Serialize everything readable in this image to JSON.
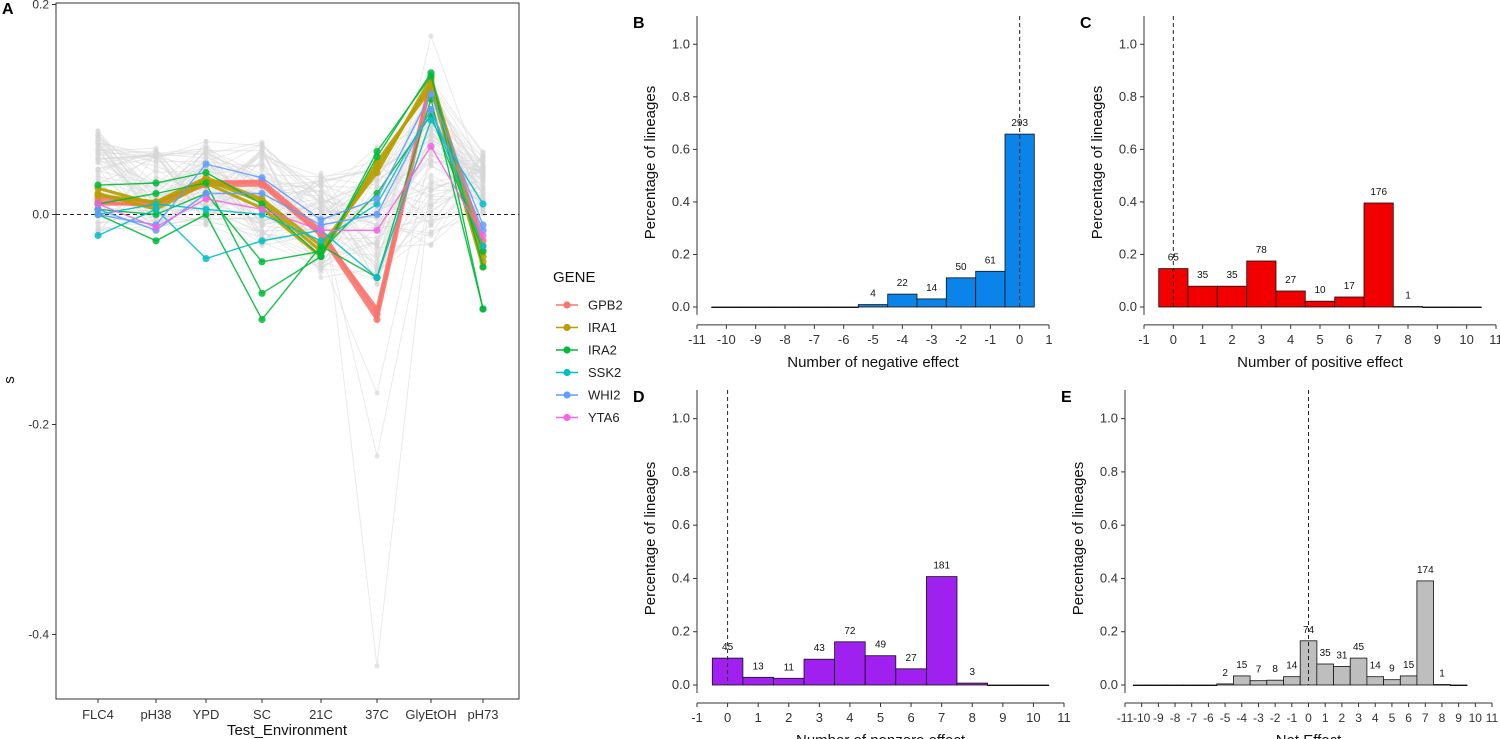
{
  "panel_A": {
    "label": "A",
    "xlabel": "Test_Environment",
    "ylabel": "s",
    "categories": [
      "FLC4",
      "pH38",
      "YPD",
      "SC",
      "21C",
      "37C",
      "GlyEtOH",
      "pH73"
    ],
    "yticks": [
      "0.2",
      "0.0",
      "-0.2",
      "-0.4"
    ]
  },
  "legend": {
    "title": "GENE",
    "items": [
      {
        "name": "GPB2",
        "color": "#f8766d"
      },
      {
        "name": "IRA1",
        "color": "#b79f00"
      },
      {
        "name": "IRA2",
        "color": "#00ba38"
      },
      {
        "name": "SSK2",
        "color": "#00bfc4"
      },
      {
        "name": "WHI2",
        "color": "#619cff"
      },
      {
        "name": "YTA6",
        "color": "#f564e3"
      }
    ]
  },
  "panels": {
    "B": {
      "label": "B",
      "xlabel": "Number of negative effect",
      "ylabel": "Percentage of lineages",
      "color": "#0a84e8",
      "xticks": [
        "-11",
        "-10",
        "-9",
        "-8",
        "-7",
        "-6",
        "-5",
        "-4",
        "-3",
        "-2",
        "-1",
        "0",
        "1"
      ],
      "yticks": [
        "0.0",
        "0.2",
        "0.4",
        "0.6",
        "0.8",
        "1.0"
      ]
    },
    "C": {
      "label": "C",
      "xlabel": "Number of positive effect",
      "ylabel": "Percentage of lineages",
      "color": "#f20000",
      "xticks": [
        "-1",
        "0",
        "1",
        "2",
        "3",
        "4",
        "5",
        "6",
        "7",
        "8",
        "9",
        "10",
        "11"
      ],
      "yticks": [
        "0.0",
        "0.2",
        "0.4",
        "0.6",
        "0.8",
        "1.0"
      ]
    },
    "D": {
      "label": "D",
      "xlabel": "Number of nonzero effect",
      "ylabel": "Percentage of lineages",
      "color": "#a020f0",
      "xticks": [
        "-1",
        "0",
        "1",
        "2",
        "3",
        "4",
        "5",
        "6",
        "7",
        "8",
        "9",
        "10",
        "11"
      ],
      "yticks": [
        "0.0",
        "0.2",
        "0.4",
        "0.6",
        "0.8",
        "1.0"
      ]
    },
    "E": {
      "label": "E",
      "xlabel": "Net Effect",
      "ylabel": "Percentage of lineages",
      "color": "#bebebe",
      "xticks": [
        "-11",
        "-10",
        "-9",
        "-8",
        "-7",
        "-6",
        "-5",
        "-4",
        "-3",
        "-2",
        "-1",
        "0",
        "1",
        "2",
        "3",
        "4",
        "5",
        "6",
        "7",
        "8",
        "9",
        "10",
        "11"
      ],
      "yticks": [
        "0.0",
        "0.2",
        "0.4",
        "0.6",
        "0.8",
        "1.0"
      ]
    }
  },
  "chart_data": [
    {
      "type": "line",
      "panel": "A",
      "title": "",
      "xlabel": "Test_Environment",
      "ylabel": "s",
      "categories": [
        "FLC4",
        "pH38",
        "YPD",
        "SC",
        "21C",
        "37C",
        "GlyEtOH",
        "pH73"
      ],
      "ylim": [
        -0.46,
        0.2
      ],
      "reference_line_y": 0.0,
      "series": [
        {
          "name": "GPB2",
          "color": "#f8766d",
          "lines": [
            [
              0.015,
              0.012,
              0.03,
              0.032,
              -0.015,
              -0.095,
              0.128,
              -0.03
            ],
            [
              0.01,
              0.01,
              0.028,
              0.028,
              -0.02,
              -0.1,
              0.125,
              -0.025
            ],
            [
              0.012,
              0.008,
              0.032,
              0.03,
              -0.018,
              -0.09,
              0.13,
              -0.035
            ]
          ]
        },
        {
          "name": "IRA1",
          "color": "#b79f00",
          "lines": [
            [
              0.025,
              0.01,
              0.033,
              0.012,
              -0.035,
              0.045,
              0.125,
              -0.045
            ],
            [
              0.02,
              0.005,
              0.03,
              0.006,
              -0.04,
              0.05,
              0.12,
              -0.05
            ],
            [
              0.018,
              0.012,
              0.035,
              0.015,
              -0.03,
              0.04,
              0.13,
              -0.04
            ]
          ]
        },
        {
          "name": "IRA2",
          "color": "#00ba38",
          "lines": [
            [
              0.028,
              0.03,
              0.04,
              0.01,
              -0.04,
              0.055,
              0.135,
              -0.09
            ],
            [
              0.0,
              -0.025,
              0.0,
              -0.1,
              -0.03,
              -0.06,
              0.11,
              -0.09
            ],
            [
              0.01,
              0.02,
              0.03,
              -0.075,
              -0.04,
              0.06,
              0.132,
              -0.05
            ],
            [
              0.005,
              0.0,
              0.02,
              -0.045,
              -0.035,
              0.02,
              0.095,
              -0.035
            ]
          ]
        },
        {
          "name": "SSK2",
          "color": "#00bfc4",
          "lines": [
            [
              -0.02,
              0.005,
              -0.042,
              -0.025,
              -0.015,
              -0.06,
              0.09,
              0.01
            ],
            [
              0.0,
              0.01,
              0.005,
              0.0,
              -0.025,
              0.01,
              0.1,
              -0.03
            ]
          ]
        },
        {
          "name": "WHI2",
          "color": "#619cff",
          "lines": [
            [
              0.0,
              -0.01,
              0.048,
              0.035,
              -0.005,
              0.015,
              0.115,
              -0.01
            ],
            [
              0.005,
              -0.015,
              0.02,
              0.02,
              -0.01,
              0.0,
              0.1,
              -0.015
            ]
          ]
        },
        {
          "name": "YTA6",
          "color": "#f564e3",
          "lines": [
            [
              0.01,
              -0.012,
              0.015,
              0.005,
              -0.015,
              -0.015,
              0.065,
              -0.02
            ]
          ]
        }
      ],
      "background_lines_color": "#d9d9d9"
    },
    {
      "type": "bar",
      "panel": "B",
      "xlabel": "Number of negative effect",
      "ylabel": "Percentage of lineages",
      "x": [
        -10,
        -9,
        -8,
        -7,
        -6,
        -5,
        -4,
        -3,
        -2,
        -1,
        0
      ],
      "values": [
        0,
        0,
        0,
        0,
        0,
        0.009,
        0.049,
        0.031,
        0.111,
        0.136,
        0.658
      ],
      "labels": [
        "",
        "",
        "",
        "",
        "",
        "4",
        "22",
        "14",
        "50",
        "61",
        "293"
      ],
      "xlim": [
        -11,
        1
      ],
      "ylim": [
        0,
        1.0
      ],
      "vline_x": 0
    },
    {
      "type": "bar",
      "panel": "C",
      "xlabel": "Number of positive effect",
      "ylabel": "Percentage of lineages",
      "x": [
        0,
        1,
        2,
        3,
        4,
        5,
        6,
        7,
        8,
        9,
        10
      ],
      "values": [
        0.146,
        0.079,
        0.079,
        0.175,
        0.061,
        0.022,
        0.038,
        0.396,
        0.002,
        0,
        0
      ],
      "labels": [
        "65",
        "35",
        "35",
        "78",
        "27",
        "10",
        "17",
        "176",
        "1",
        "",
        ""
      ],
      "xlim": [
        -1,
        11
      ],
      "ylim": [
        0,
        1.0
      ],
      "vline_x": 0
    },
    {
      "type": "bar",
      "panel": "D",
      "xlabel": "Number of nonzero effect",
      "ylabel": "Percentage of lineages",
      "x": [
        0,
        1,
        2,
        3,
        4,
        5,
        6,
        7,
        8,
        9,
        10
      ],
      "values": [
        0.101,
        0.029,
        0.025,
        0.097,
        0.162,
        0.11,
        0.061,
        0.407,
        0.007,
        0,
        0
      ],
      "labels": [
        "45",
        "13",
        "11",
        "43",
        "72",
        "49",
        "27",
        "181",
        "3",
        "",
        ""
      ],
      "xlim": [
        -1,
        11
      ],
      "ylim": [
        0,
        1.0
      ],
      "vline_x": 0
    },
    {
      "type": "bar",
      "panel": "E",
      "xlabel": "Net Effect",
      "ylabel": "Percentage of lineages",
      "x": [
        -10,
        -9,
        -8,
        -7,
        -6,
        -5,
        -4,
        -3,
        -2,
        -1,
        0,
        1,
        2,
        3,
        4,
        5,
        6,
        7,
        8,
        9
      ],
      "values": [
        0,
        0,
        0,
        0,
        0,
        0.004,
        0.034,
        0.016,
        0.018,
        0.031,
        0.166,
        0.079,
        0.07,
        0.101,
        0.031,
        0.02,
        0.034,
        0.391,
        0.002,
        0
      ],
      "labels": [
        "",
        "",
        "",
        "",
        "",
        "2",
        "15",
        "7",
        "8",
        "14",
        "74",
        "35",
        "31",
        "45",
        "14",
        "9",
        "15",
        "174",
        "1",
        ""
      ],
      "xlim": [
        -11,
        11
      ],
      "ylim": [
        0,
        1.0
      ],
      "vline_x": 0
    }
  ]
}
